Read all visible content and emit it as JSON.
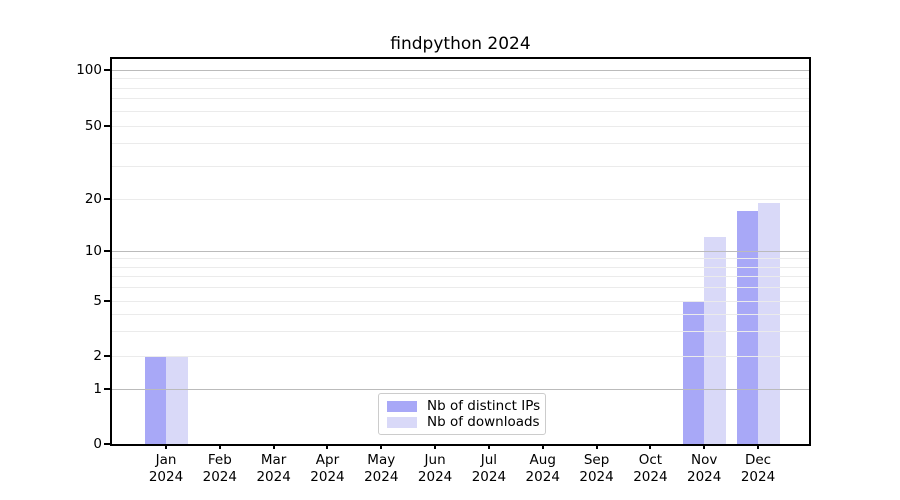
{
  "title": "findpython 2024",
  "chart_data": {
    "type": "bar",
    "title": "findpython 2024",
    "categories": [
      "Jan",
      "Feb",
      "Mar",
      "Apr",
      "May",
      "Jun",
      "Jul",
      "Aug",
      "Sep",
      "Oct",
      "Nov",
      "Dec"
    ],
    "x_sublabel": "2024",
    "series": [
      {
        "name": "Nb of distinct IPs",
        "color": "#a8a8f7",
        "values": [
          2,
          0,
          0,
          0,
          0,
          0,
          0,
          0,
          0,
          0,
          5,
          17
        ]
      },
      {
        "name": "Nb of downloads",
        "color": "#d9d9f8",
        "values": [
          2,
          0,
          0,
          0,
          0,
          0,
          0,
          0,
          0,
          0,
          12,
          19
        ]
      }
    ],
    "yscale": "symlog",
    "ylim": [
      0,
      115
    ],
    "y_ticks": [
      0,
      1,
      2,
      5,
      10,
      20,
      50,
      100
    ],
    "grid": true,
    "grid_major": [
      1,
      10,
      100
    ],
    "grid_minor": [
      2,
      3,
      4,
      5,
      6,
      7,
      8,
      9,
      20,
      30,
      40,
      50,
      60,
      70,
      80,
      90
    ],
    "grid_major_color": "#bbbbbb",
    "grid_minor_color": "#ebebeb",
    "axis_color": "#000000",
    "legend_position": "lower center"
  }
}
